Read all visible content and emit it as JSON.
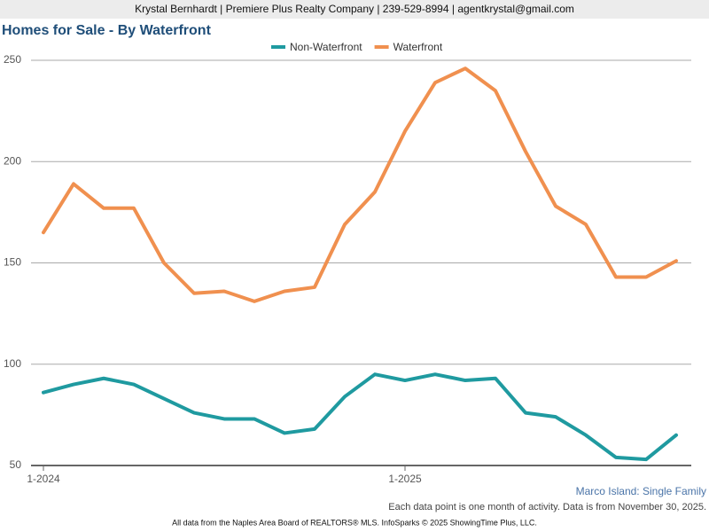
{
  "chart_data": {
    "type": "line",
    "header": "Krystal Bernhardt | Premiere Plus Realty Company | 239-529-8994 | agentkrystal@gmail.com",
    "title": "Homes for Sale - By Waterfront",
    "categories": [
      "1-2024",
      null,
      null,
      null,
      null,
      null,
      null,
      null,
      null,
      null,
      null,
      null,
      "1-2025",
      null,
      null,
      null,
      null,
      null,
      null,
      null,
      null,
      null
    ],
    "series": [
      {
        "name": "Non-Waterfront",
        "color": "#1f9aa0",
        "values": [
          86,
          90,
          93,
          90,
          83,
          76,
          73,
          73,
          66,
          68,
          84,
          95,
          92,
          95,
          92,
          93,
          76,
          74,
          65,
          54,
          53,
          65
        ]
      },
      {
        "name": "Waterfront",
        "color": "#f0904f",
        "values": [
          165,
          189,
          177,
          177,
          150,
          135,
          136,
          131,
          136,
          138,
          169,
          185,
          215,
          239,
          246,
          235,
          205,
          178,
          169,
          143,
          143,
          151
        ]
      }
    ],
    "ylim": [
      50,
      250
    ],
    "yticks": [
      50,
      100,
      150,
      200,
      250
    ],
    "grid": true,
    "subtitle": "Marco Island: Single Family",
    "note": "Each data point is one month of activity. Data is from November 30, 2025.",
    "source": "All data from the Naples Area Board of REALTORS® MLS. InfoSparks © 2025 ShowingTime Plus, LLC."
  }
}
